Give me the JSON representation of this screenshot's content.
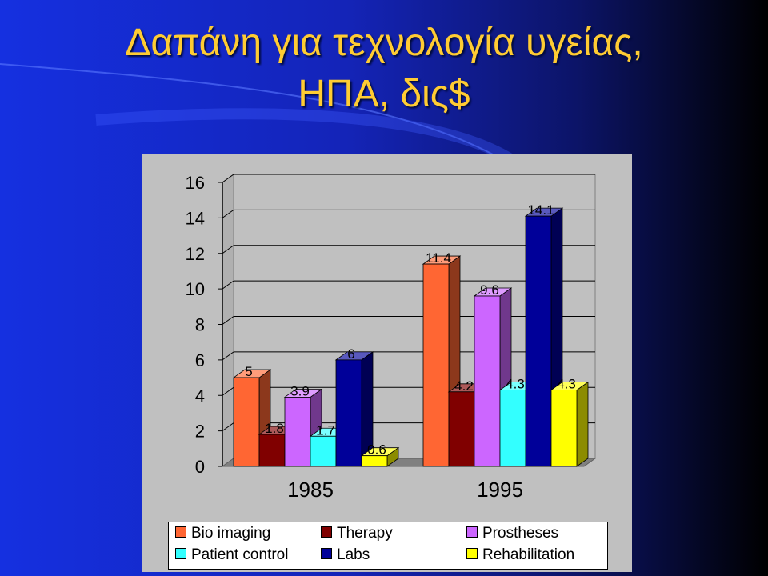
{
  "title_line_1": "Δαπάνη για τεχνολογία υγείας,",
  "title_line_2": "ΗΠΑ, δις$",
  "chart_data": {
    "type": "bar",
    "categories": [
      "1985",
      "1995"
    ],
    "series": [
      {
        "name": "Bio imaging",
        "values": [
          5,
          11.4
        ],
        "labels": [
          "5",
          "11.4"
        ],
        "color": "#ff6633"
      },
      {
        "name": "Therapy",
        "values": [
          1.8,
          4.2
        ],
        "labels": [
          "1.8",
          "4.2"
        ],
        "color": "#800000"
      },
      {
        "name": "Prostheses",
        "values": [
          3.9,
          9.6
        ],
        "labels": [
          "3.9",
          "9.6"
        ],
        "color": "#cc66ff"
      },
      {
        "name": "Patient control",
        "values": [
          1.7,
          4.3
        ],
        "labels": [
          "1.7",
          "4.3"
        ],
        "color": "#33ffff"
      },
      {
        "name": "Labs",
        "values": [
          6,
          14.1
        ],
        "labels": [
          "6",
          "14.1"
        ],
        "color": "#000099"
      },
      {
        "name": "Rehabilitation",
        "values": [
          0.6,
          4.3
        ],
        "labels": [
          "0.6",
          "4.3"
        ],
        "color": "#ffff00"
      }
    ],
    "yticks": [
      "0",
      "2",
      "4",
      "6",
      "8",
      "10",
      "12",
      "14",
      "16"
    ],
    "ylim": [
      0,
      16
    ],
    "grid": true,
    "legend_position": "bottom",
    "title": "",
    "xlabel": "",
    "ylabel": ""
  }
}
